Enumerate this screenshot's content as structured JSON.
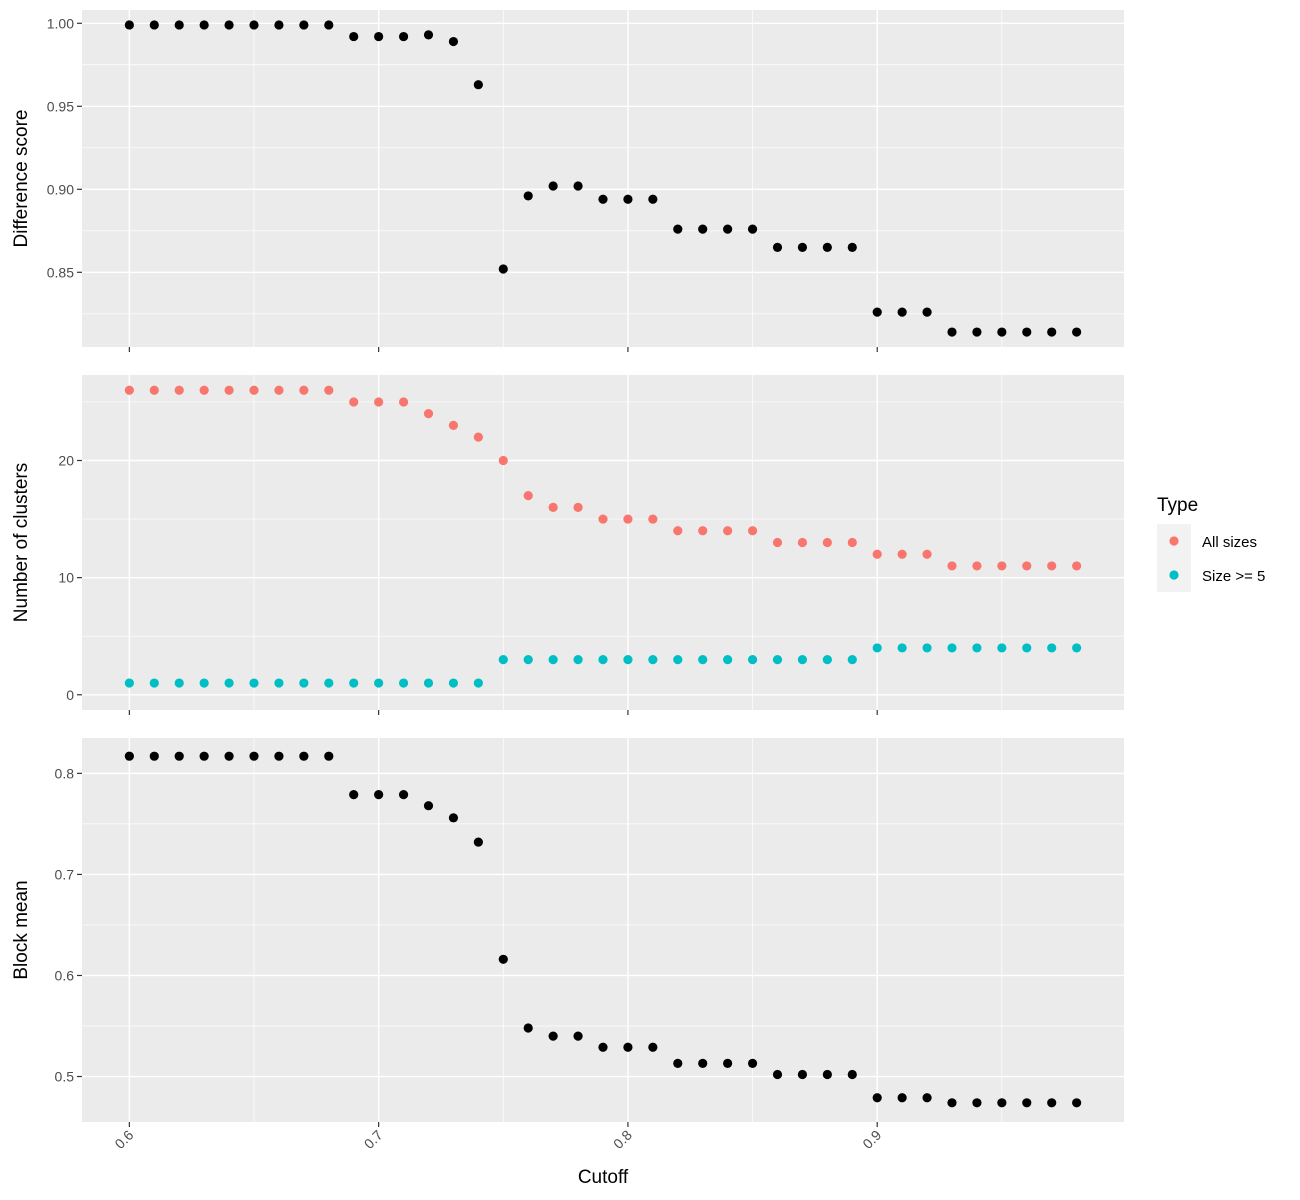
{
  "chart_data": [
    {
      "type": "scatter",
      "panel": "top",
      "ylabel": "Difference score",
      "ylim": [
        0.805,
        1.008
      ],
      "yticks": [
        0.85,
        0.9,
        0.95,
        1.0
      ],
      "ytick_labels": [
        "0.85",
        "0.90",
        "0.95",
        "1.00"
      ],
      "xlim": [
        0.581,
        0.999
      ],
      "grid": true,
      "series": [
        {
          "color": "#000000",
          "x": [
            0.6,
            0.61,
            0.62,
            0.63,
            0.64,
            0.65,
            0.66,
            0.67,
            0.68,
            0.69,
            0.7,
            0.71,
            0.72,
            0.73,
            0.74,
            0.75,
            0.76,
            0.77,
            0.78,
            0.79,
            0.8,
            0.81,
            0.82,
            0.83,
            0.84,
            0.85,
            0.86,
            0.87,
            0.88,
            0.89,
            0.9,
            0.91,
            0.92,
            0.93,
            0.94,
            0.95,
            0.96,
            0.97,
            0.98
          ],
          "y": [
            0.999,
            0.999,
            0.999,
            0.999,
            0.999,
            0.999,
            0.999,
            0.999,
            0.999,
            0.992,
            0.992,
            0.992,
            0.993,
            0.989,
            0.963,
            0.852,
            0.896,
            0.902,
            0.902,
            0.894,
            0.894,
            0.894,
            0.876,
            0.876,
            0.876,
            0.876,
            0.865,
            0.865,
            0.865,
            0.865,
            0.826,
            0.826,
            0.826,
            0.814,
            0.814,
            0.814,
            0.814,
            0.814,
            0.814
          ]
        }
      ]
    },
    {
      "type": "scatter",
      "panel": "middle",
      "ylabel": "Number of clusters",
      "ylim": [
        -1.3,
        27.3
      ],
      "yticks": [
        0,
        10,
        20
      ],
      "ytick_labels": [
        "0",
        "10",
        "20"
      ],
      "xlim": [
        0.581,
        0.999
      ],
      "grid": true,
      "legend": {
        "title": "Type",
        "position": "right"
      },
      "series": [
        {
          "name": "All sizes",
          "color": "#F8766D",
          "x": [
            0.6,
            0.61,
            0.62,
            0.63,
            0.64,
            0.65,
            0.66,
            0.67,
            0.68,
            0.69,
            0.7,
            0.71,
            0.72,
            0.73,
            0.74,
            0.75,
            0.76,
            0.77,
            0.78,
            0.79,
            0.8,
            0.81,
            0.82,
            0.83,
            0.84,
            0.85,
            0.86,
            0.87,
            0.88,
            0.89,
            0.9,
            0.91,
            0.92,
            0.93,
            0.94,
            0.95,
            0.96,
            0.97,
            0.98
          ],
          "y": [
            26,
            26,
            26,
            26,
            26,
            26,
            26,
            26,
            26,
            25,
            25,
            25,
            24,
            23,
            22,
            20,
            17,
            16,
            16,
            15,
            15,
            15,
            14,
            14,
            14,
            14,
            13,
            13,
            13,
            13,
            12,
            12,
            12,
            11,
            11,
            11,
            11,
            11,
            11
          ]
        },
        {
          "name": "Size >= 5",
          "color": "#00BFC4",
          "x": [
            0.6,
            0.61,
            0.62,
            0.63,
            0.64,
            0.65,
            0.66,
            0.67,
            0.68,
            0.69,
            0.7,
            0.71,
            0.72,
            0.73,
            0.74,
            0.75,
            0.76,
            0.77,
            0.78,
            0.79,
            0.8,
            0.81,
            0.82,
            0.83,
            0.84,
            0.85,
            0.86,
            0.87,
            0.88,
            0.89,
            0.9,
            0.91,
            0.92,
            0.93,
            0.94,
            0.95,
            0.96,
            0.97,
            0.98
          ],
          "y": [
            1,
            1,
            1,
            1,
            1,
            1,
            1,
            1,
            1,
            1,
            1,
            1,
            1,
            1,
            1,
            3,
            3,
            3,
            3,
            3,
            3,
            3,
            3,
            3,
            3,
            3,
            3,
            3,
            3,
            3,
            4,
            4,
            4,
            4,
            4,
            4,
            4,
            4,
            4
          ]
        }
      ]
    },
    {
      "type": "scatter",
      "panel": "bottom",
      "ylabel": "Block mean",
      "xlabel": "Cutoff",
      "ylim": [
        0.455,
        0.835
      ],
      "yticks": [
        0.5,
        0.6,
        0.7,
        0.8
      ],
      "ytick_labels": [
        "0.5",
        "0.6",
        "0.7",
        "0.8"
      ],
      "xlim": [
        0.581,
        0.999
      ],
      "xticks": [
        0.6,
        0.7,
        0.8,
        0.9
      ],
      "xtick_labels": [
        "0.6",
        "0.7",
        "0.8",
        "0.9"
      ],
      "grid": true,
      "series": [
        {
          "color": "#000000",
          "x": [
            0.6,
            0.61,
            0.62,
            0.63,
            0.64,
            0.65,
            0.66,
            0.67,
            0.68,
            0.69,
            0.7,
            0.71,
            0.72,
            0.73,
            0.74,
            0.75,
            0.76,
            0.77,
            0.78,
            0.79,
            0.8,
            0.81,
            0.82,
            0.83,
            0.84,
            0.85,
            0.86,
            0.87,
            0.88,
            0.89,
            0.9,
            0.91,
            0.92,
            0.93,
            0.94,
            0.95,
            0.96,
            0.97,
            0.98
          ],
          "y": [
            0.817,
            0.817,
            0.817,
            0.817,
            0.817,
            0.817,
            0.817,
            0.817,
            0.817,
            0.779,
            0.779,
            0.779,
            0.768,
            0.756,
            0.732,
            0.616,
            0.548,
            0.54,
            0.54,
            0.529,
            0.529,
            0.529,
            0.513,
            0.513,
            0.513,
            0.513,
            0.502,
            0.502,
            0.502,
            0.502,
            0.479,
            0.479,
            0.479,
            0.474,
            0.474,
            0.474,
            0.474,
            0.474,
            0.474
          ]
        }
      ]
    }
  ]
}
